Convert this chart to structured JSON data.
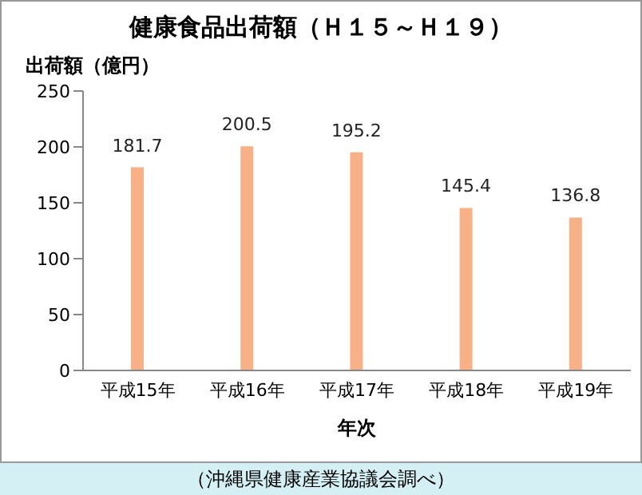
{
  "chart_data": {
    "type": "bar",
    "title": "健康食品出荷額（Ｈ１５～Ｈ１９）",
    "ylabel": "出荷額（億円）",
    "xlabel": "年次",
    "categories": [
      "平成15年",
      "平成16年",
      "平成17年",
      "平成18年",
      "平成19年"
    ],
    "values": [
      181.7,
      200.5,
      195.2,
      145.4,
      136.8
    ],
    "color": "#f8b087",
    "ylim": [
      0,
      250
    ],
    "yticks": [
      0,
      50,
      100,
      150,
      200,
      250
    ],
    "grid": false,
    "data_labels": true,
    "annotations": [
      "（沖縄県健康産業協議会調べ）"
    ]
  }
}
